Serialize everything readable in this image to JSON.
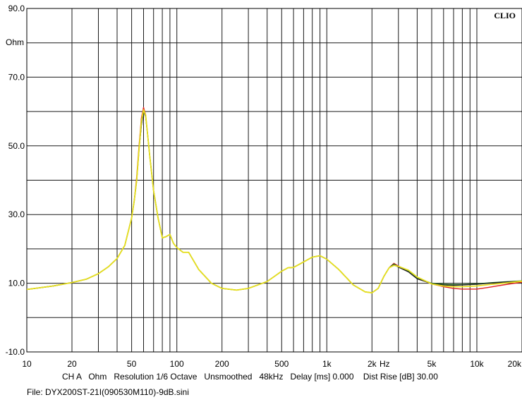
{
  "badge": "CLIO",
  "info_line": "CH A   Ohm   Resolution 1/6 Octave   Unsmoothed   48kHz   Delay [ms] 0.000    Dist Rise [dB] 30.00",
  "file_line": "File: DYX200ST-21I(090530M110)-9dB.sini",
  "chart_data": {
    "type": "line",
    "title": "",
    "xlabel": "Hz",
    "ylabel": "Ohm",
    "xscale": "log",
    "xlim": [
      10,
      20000
    ],
    "ylim": [
      -10,
      90
    ],
    "grid": true,
    "x_tick_labels": [
      {
        "v": 10,
        "t": "10"
      },
      {
        "v": 20,
        "t": "20"
      },
      {
        "v": 50,
        "t": "50"
      },
      {
        "v": 100,
        "t": "100"
      },
      {
        "v": 200,
        "t": "200"
      },
      {
        "v": 500,
        "t": "500"
      },
      {
        "v": 1000,
        "t": "1k"
      },
      {
        "v": 2000,
        "t": "2k"
      },
      {
        "v": 5000,
        "t": "5k"
      },
      {
        "v": 10000,
        "t": "10k"
      },
      {
        "v": 20000,
        "t": "20k"
      }
    ],
    "y_tick_labels": [
      {
        "v": 90,
        "t": "90.0"
      },
      {
        "v": 70,
        "t": "70.0"
      },
      {
        "v": 50,
        "t": "50.0"
      },
      {
        "v": 30,
        "t": "30.0"
      },
      {
        "v": 10,
        "t": "10.0"
      },
      {
        "v": -10,
        "t": "-10.0"
      }
    ],
    "colors": {
      "red": "#e02020",
      "green": "#2e8b2e",
      "black": "#202020",
      "yellow": "#e6e020"
    },
    "x": [
      10,
      15,
      20,
      25,
      30,
      35,
      40,
      45,
      50,
      52,
      54,
      56,
      58,
      60,
      62,
      64,
      66,
      70,
      75,
      80,
      85,
      90,
      95,
      100,
      110,
      120,
      140,
      170,
      200,
      250,
      300,
      400,
      500,
      550,
      600,
      700,
      800,
      900,
      1000,
      1200,
      1500,
      1800,
      2000,
      2200,
      2400,
      2600,
      2800,
      3000,
      3500,
      4000,
      5000,
      6000,
      7000,
      8000,
      10000,
      12000,
      15000,
      20000
    ],
    "series": [
      {
        "color": "red",
        "values": [
          8.2,
          9.2,
          10.2,
          11.2,
          12.8,
          14.8,
          17.2,
          21,
          29,
          34,
          41,
          50,
          58,
          61.2,
          59,
          53,
          47,
          37,
          29,
          23.2,
          23.6,
          24.2,
          21.6,
          20.4,
          19,
          19,
          14,
          10,
          8.5,
          8,
          8.5,
          10.5,
          13.5,
          14.5,
          14.6,
          16.2,
          17.6,
          18,
          17,
          14,
          9.5,
          7.5,
          7.2,
          8.5,
          12,
          14.5,
          15.8,
          15,
          13.5,
          11.5,
          9.8,
          9,
          8.5,
          8.3,
          8.3,
          8.8,
          9.5,
          10.3
        ]
      },
      {
        "color": "green",
        "values": [
          8.2,
          9.2,
          10.2,
          11.2,
          12.8,
          14.8,
          17.2,
          21,
          29,
          34,
          40,
          49,
          56,
          60,
          58.5,
          53,
          47,
          37,
          29,
          23.2,
          23.6,
          24.2,
          21.6,
          20.4,
          19,
          19,
          14,
          10,
          8.5,
          8,
          8.5,
          10.5,
          13.5,
          14.5,
          14.6,
          16.2,
          17.6,
          18,
          17,
          14,
          9.5,
          7.5,
          7.2,
          8.5,
          12,
          14.5,
          15.6,
          14.8,
          13.5,
          11.5,
          10,
          9.7,
          9.6,
          9.6,
          9.8,
          10.1,
          10.4,
          10.7
        ]
      },
      {
        "color": "black",
        "values": [
          8.2,
          9.2,
          10.2,
          11.2,
          12.8,
          14.8,
          17.2,
          21,
          29,
          34,
          40,
          49,
          56,
          60,
          58.5,
          53,
          47,
          37,
          29,
          23.2,
          23.6,
          24.2,
          21.6,
          20.4,
          19,
          19,
          14,
          10,
          8.5,
          8,
          8.5,
          10.5,
          13.5,
          14.5,
          14.6,
          16.2,
          17.6,
          18,
          17,
          14,
          9.5,
          7.5,
          7.2,
          8.5,
          12,
          14.5,
          15.4,
          14.7,
          13.3,
          11.3,
          9.9,
          9.5,
          9.4,
          9.5,
          9.7,
          10,
          10.3,
          10.6
        ]
      },
      {
        "color": "yellow",
        "values": [
          8.2,
          9.2,
          10.2,
          11.2,
          12.8,
          14.8,
          17.2,
          21,
          29,
          34,
          40,
          49,
          57,
          60.5,
          58.8,
          53,
          47,
          37,
          29,
          23.2,
          23.6,
          24.2,
          21.6,
          20.4,
          19,
          19,
          14,
          10,
          8.5,
          8,
          8.5,
          10.5,
          13.5,
          14.5,
          14.6,
          16.2,
          17.6,
          18,
          17,
          14,
          9.5,
          7.5,
          7.2,
          8.5,
          12,
          14.5,
          15.2,
          14.9,
          13.8,
          11.8,
          9.8,
          9.2,
          9,
          9,
          9.2,
          9.6,
          10,
          10.6
        ]
      }
    ]
  }
}
